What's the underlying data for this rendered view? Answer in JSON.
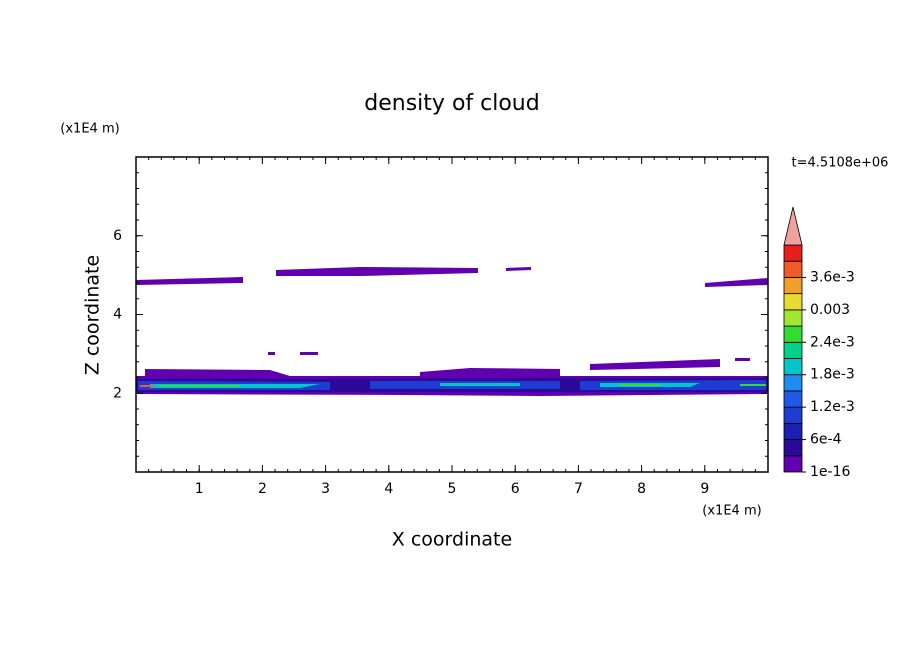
{
  "chart_data": {
    "type": "contour",
    "title": "density of cloud",
    "x_label": "X coordinate",
    "y_label": "Z coordinate",
    "x_unit": "(x1E4 m)",
    "y_unit": "(x1E4 m)",
    "time_label": "t=4.5108e+06",
    "xlim": [
      0,
      10
    ],
    "xticks": [
      1,
      2,
      3,
      4,
      5,
      6,
      7,
      8,
      9
    ],
    "ylim": [
      0,
      8
    ],
    "yticks": [
      2,
      4,
      6
    ],
    "colorbar": {
      "colors": [
        "#6000b0",
        "#2a0a96",
        "#1e1eb4",
        "#1e3cd2",
        "#1e5ae6",
        "#1e8cf0",
        "#00c8c8",
        "#00d28c",
        "#32dc32",
        "#a0e632",
        "#e6dc32",
        "#f0a028",
        "#f05a28",
        "#e61e1e"
      ],
      "over_color": "#f0a0a0",
      "ticks": [
        {
          "value": 1e-16,
          "label": "1e-16"
        },
        {
          "value": 0.0006,
          "label": "6e-4"
        },
        {
          "value": 0.0012,
          "label": "1.2e-3"
        },
        {
          "value": 0.0018,
          "label": "1.8e-3"
        },
        {
          "value": 0.0024,
          "label": "2.4e-3"
        },
        0.003,
        {
          "value": 0.0036,
          "label": "3.6e-3"
        }
      ]
    }
  }
}
